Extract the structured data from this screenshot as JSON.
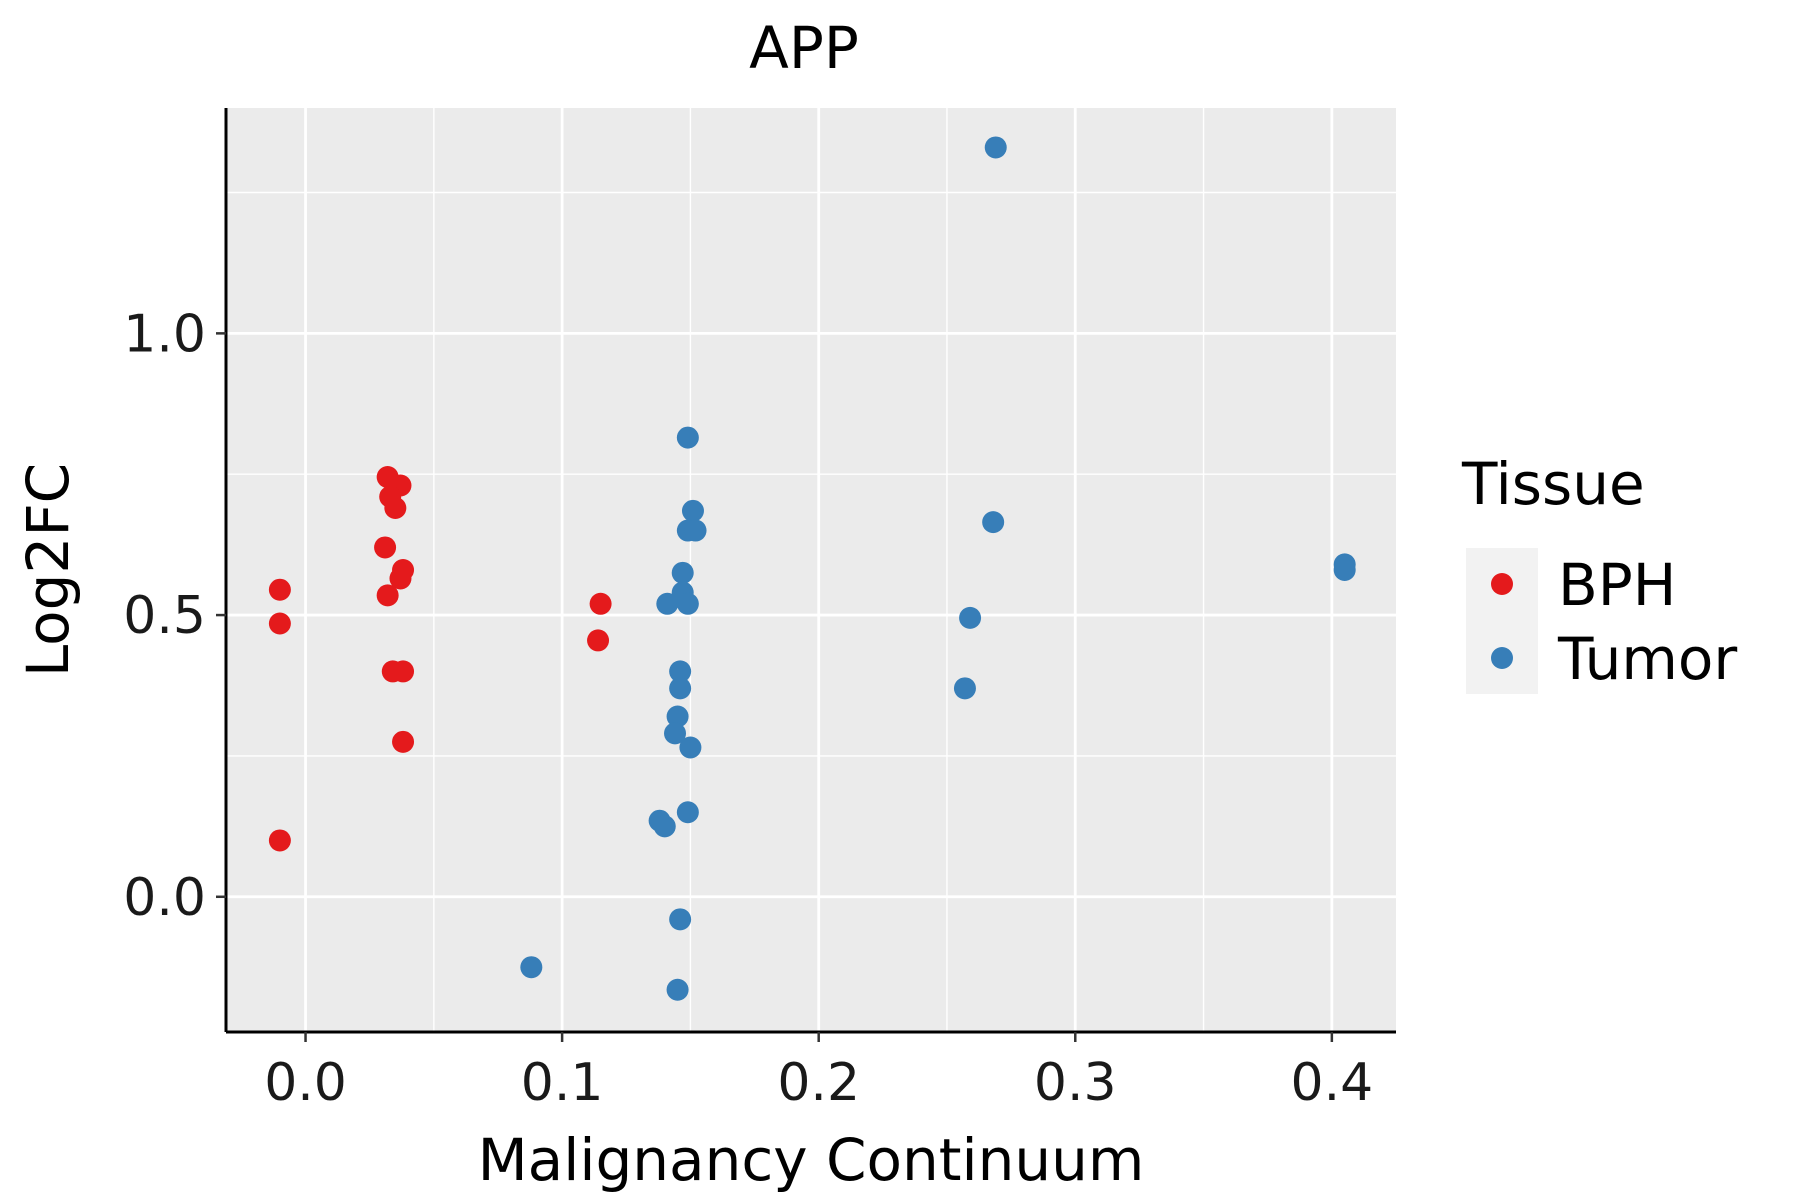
{
  "chart_data": {
    "type": "scatter",
    "title": "APP",
    "xlabel": "Malignancy Continuum",
    "ylabel": "Log2FC",
    "xlim": [
      -0.031,
      0.425
    ],
    "ylim": [
      -0.24,
      1.4
    ],
    "xticks": [
      0.0,
      0.1,
      0.2,
      0.3,
      0.4
    ],
    "xtick_labels": [
      "0.0",
      "0.1",
      "0.2",
      "0.3",
      "0.4"
    ],
    "yticks": [
      0.0,
      0.5,
      1.0
    ],
    "ytick_labels": [
      "0.0",
      "0.5",
      "1.0"
    ],
    "grid": true,
    "legend": {
      "title": "Tissue",
      "position": "right"
    },
    "series": [
      {
        "name": "BPH",
        "color": "#E41A1C",
        "points": [
          {
            "x": -0.01,
            "y": 0.545
          },
          {
            "x": -0.01,
            "y": 0.485
          },
          {
            "x": -0.01,
            "y": 0.1
          },
          {
            "x": 0.032,
            "y": 0.745
          },
          {
            "x": 0.037,
            "y": 0.73
          },
          {
            "x": 0.033,
            "y": 0.71
          },
          {
            "x": 0.035,
            "y": 0.69
          },
          {
            "x": 0.031,
            "y": 0.62
          },
          {
            "x": 0.038,
            "y": 0.58
          },
          {
            "x": 0.037,
            "y": 0.565
          },
          {
            "x": 0.032,
            "y": 0.535
          },
          {
            "x": 0.034,
            "y": 0.4
          },
          {
            "x": 0.038,
            "y": 0.4
          },
          {
            "x": 0.038,
            "y": 0.275
          },
          {
            "x": 0.115,
            "y": 0.52
          },
          {
            "x": 0.114,
            "y": 0.455
          }
        ]
      },
      {
        "name": "Tumor",
        "color": "#377EB8",
        "points": [
          {
            "x": 0.269,
            "y": 1.33
          },
          {
            "x": 0.149,
            "y": 0.815
          },
          {
            "x": 0.151,
            "y": 0.685
          },
          {
            "x": 0.149,
            "y": 0.65
          },
          {
            "x": 0.152,
            "y": 0.65
          },
          {
            "x": 0.268,
            "y": 0.665
          },
          {
            "x": 0.147,
            "y": 0.575
          },
          {
            "x": 0.147,
            "y": 0.54
          },
          {
            "x": 0.141,
            "y": 0.52
          },
          {
            "x": 0.149,
            "y": 0.52
          },
          {
            "x": 0.259,
            "y": 0.495
          },
          {
            "x": 0.146,
            "y": 0.4
          },
          {
            "x": 0.146,
            "y": 0.37
          },
          {
            "x": 0.257,
            "y": 0.37
          },
          {
            "x": 0.145,
            "y": 0.32
          },
          {
            "x": 0.144,
            "y": 0.29
          },
          {
            "x": 0.15,
            "y": 0.265
          },
          {
            "x": 0.149,
            "y": 0.15
          },
          {
            "x": 0.138,
            "y": 0.135
          },
          {
            "x": 0.14,
            "y": 0.125
          },
          {
            "x": 0.146,
            "y": -0.04
          },
          {
            "x": 0.145,
            "y": -0.165
          },
          {
            "x": 0.088,
            "y": -0.125
          },
          {
            "x": 0.405,
            "y": 0.59
          },
          {
            "x": 0.405,
            "y": 0.58
          }
        ]
      }
    ]
  }
}
